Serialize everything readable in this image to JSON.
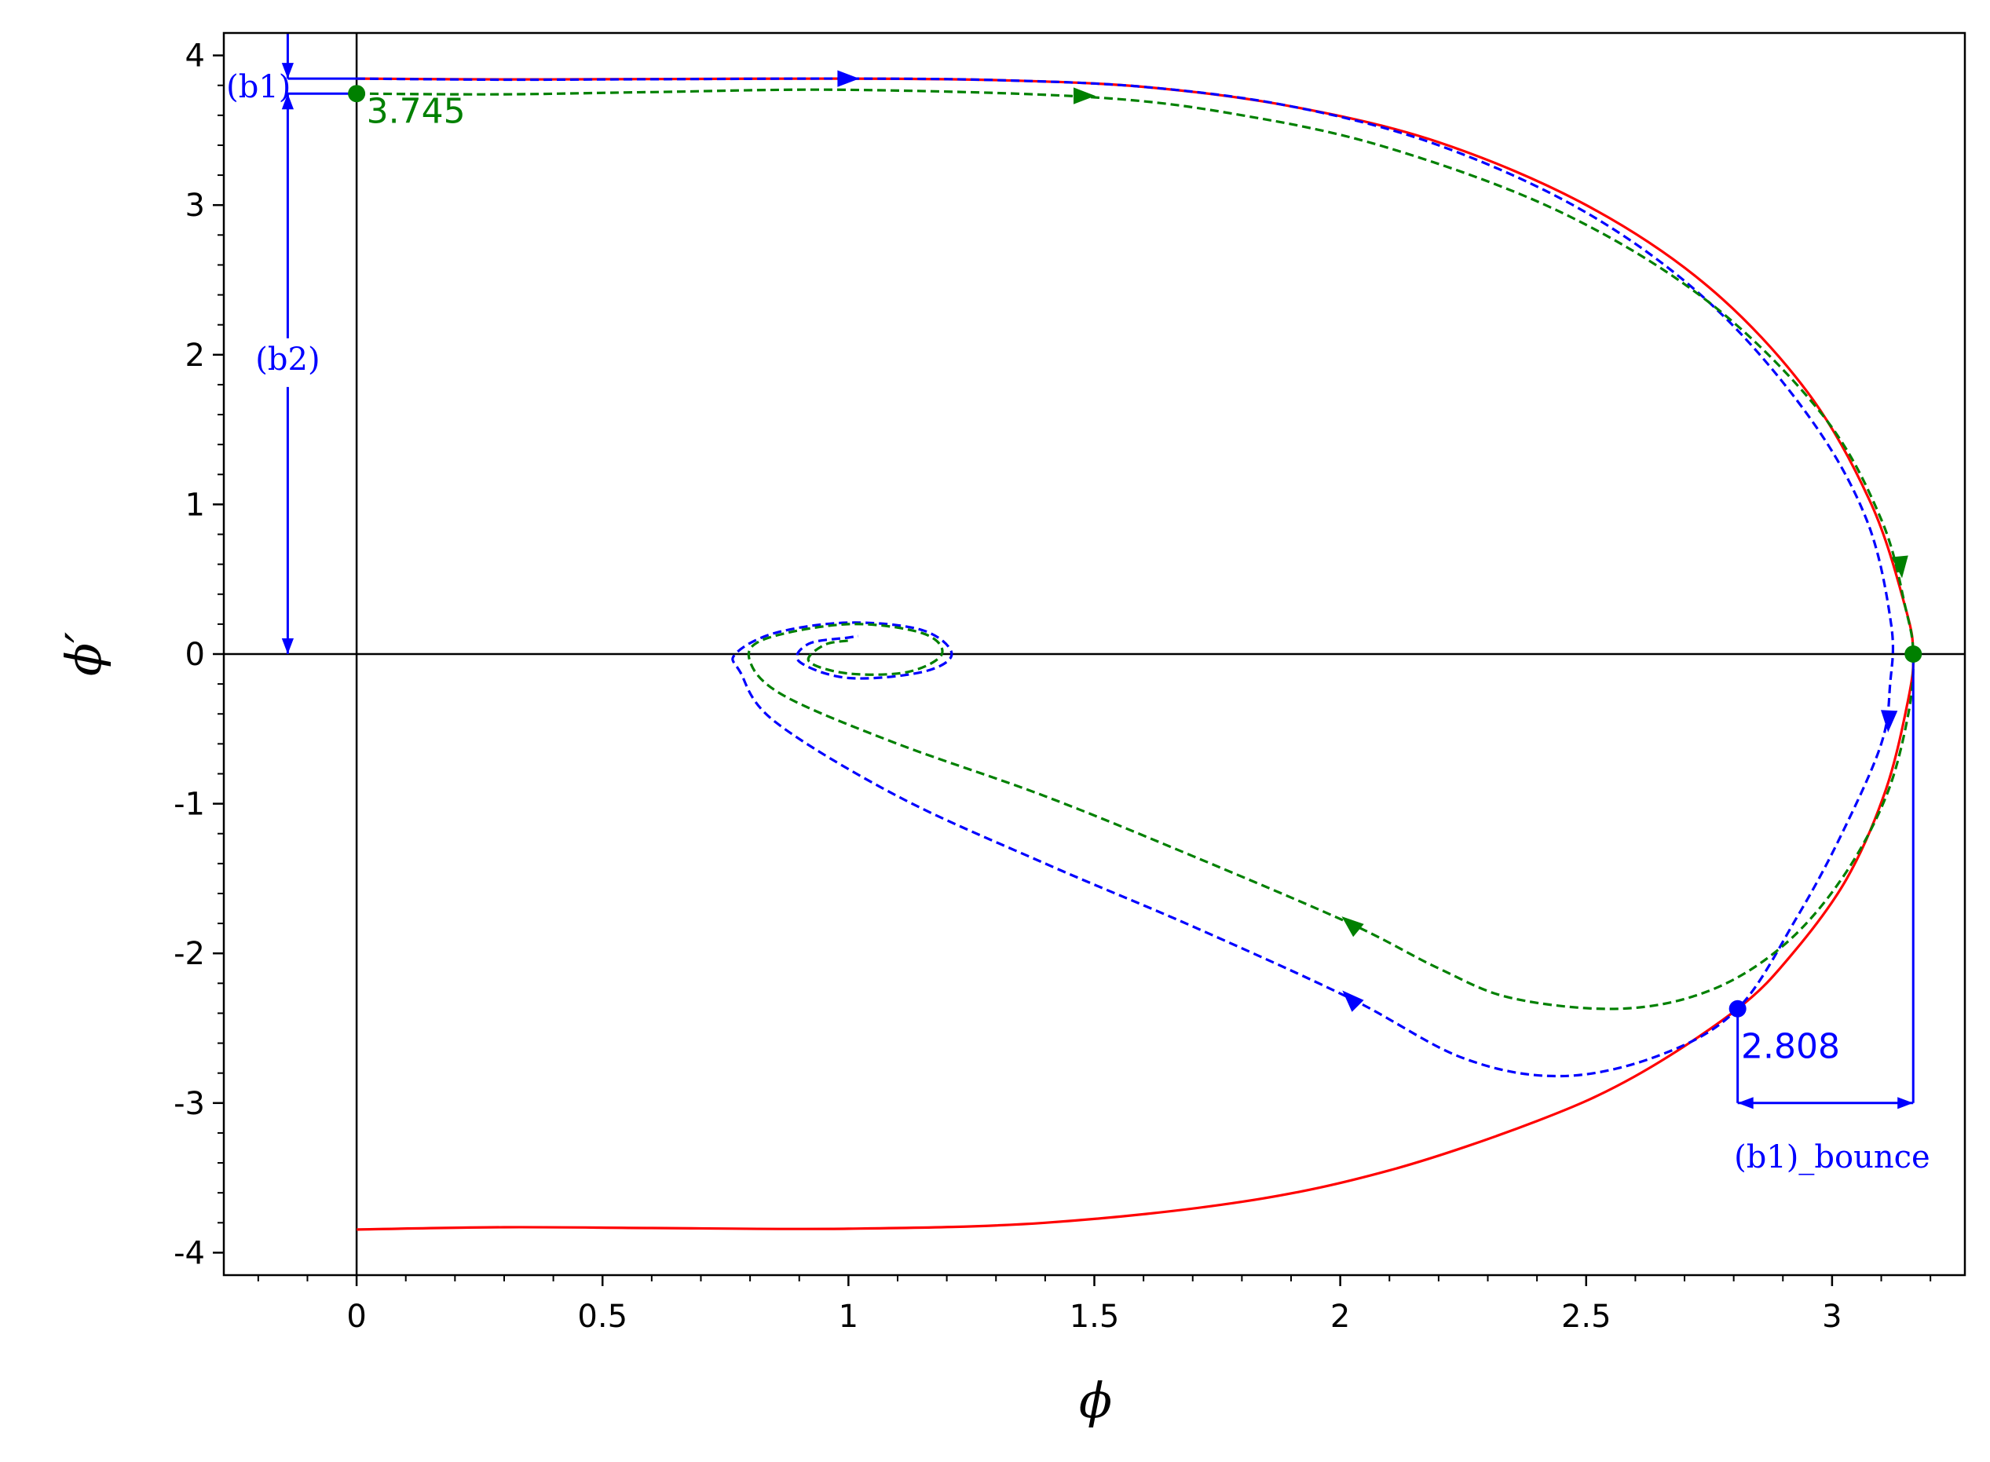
{
  "chart_data": {
    "type": "line",
    "xlabel": "ϕ",
    "ylabel": "ϕ′",
    "xlim": [
      -0.27,
      3.27
    ],
    "ylim": [
      -4.15,
      4.15
    ],
    "x_ticks": [
      0,
      0.5,
      1,
      1.5,
      2,
      2.5,
      3
    ],
    "x_tick_labels": [
      "0",
      "0.5",
      "1",
      "1.5",
      "2",
      "2.5",
      "3"
    ],
    "y_ticks": [
      -4,
      -3,
      -2,
      -1,
      0,
      1,
      2,
      3,
      4
    ],
    "y_tick_labels": [
      "-4",
      "-3",
      "-2",
      "-1",
      "0",
      "1",
      "2",
      "3",
      "4"
    ],
    "grid": false,
    "legend": "none",
    "series": [
      {
        "color": "#ff0000",
        "style": "solid",
        "points": [
          [
            0,
            3.845
          ],
          [
            0.3,
            3.84
          ],
          [
            0.6,
            3.842
          ],
          [
            1.0,
            3.845
          ],
          [
            1.3,
            3.835
          ],
          [
            1.6,
            3.79
          ],
          [
            1.9,
            3.66
          ],
          [
            2.2,
            3.42
          ],
          [
            2.5,
            3.0
          ],
          [
            2.75,
            2.45
          ],
          [
            2.95,
            1.75
          ],
          [
            3.08,
            1.0
          ],
          [
            3.15,
            0.3
          ],
          [
            3.165,
            0.0
          ],
          [
            3.155,
            -0.3
          ],
          [
            3.11,
            -0.9
          ],
          [
            3.03,
            -1.5
          ],
          [
            2.92,
            -2.0
          ],
          [
            2.808,
            -2.37
          ],
          [
            2.6,
            -2.82
          ],
          [
            2.4,
            -3.12
          ],
          [
            2.1,
            -3.45
          ],
          [
            1.8,
            -3.66
          ],
          [
            1.4,
            -3.8
          ],
          [
            1.0,
            -3.84
          ],
          [
            0.6,
            -3.835
          ],
          [
            0.3,
            -3.83
          ],
          [
            0,
            -3.845
          ]
        ]
      },
      {
        "color": "#0000ff",
        "style": "dashed",
        "points": [
          [
            0,
            3.845
          ],
          [
            0.3,
            3.838
          ],
          [
            0.6,
            3.841
          ],
          [
            1.0,
            3.845
          ],
          [
            1.3,
            3.835
          ],
          [
            1.6,
            3.79
          ],
          [
            1.9,
            3.66
          ],
          [
            2.2,
            3.4
          ],
          [
            2.5,
            2.95
          ],
          [
            2.75,
            2.35
          ],
          [
            2.95,
            1.6
          ],
          [
            3.07,
            0.9
          ],
          [
            3.12,
            0.2
          ],
          [
            3.118,
            -0.2
          ],
          [
            3.1,
            -0.6
          ],
          [
            3.02,
            -1.2
          ],
          [
            2.93,
            -1.75
          ],
          [
            2.808,
            -2.37
          ],
          [
            2.65,
            -2.68
          ],
          [
            2.45,
            -2.82
          ],
          [
            2.25,
            -2.7
          ],
          [
            2.02,
            -2.3
          ],
          [
            1.7,
            -1.82
          ],
          [
            1.4,
            -1.4
          ],
          [
            1.1,
            -0.95
          ],
          [
            0.85,
            -0.45
          ],
          [
            0.78,
            -0.12
          ],
          [
            0.77,
            0.0
          ],
          [
            0.85,
            0.14
          ],
          [
            1.0,
            0.21
          ],
          [
            1.15,
            0.16
          ],
          [
            1.21,
            0.0
          ],
          [
            1.15,
            -0.12
          ],
          [
            1.0,
            -0.16
          ],
          [
            0.9,
            -0.05
          ],
          [
            0.92,
            0.07
          ],
          [
            1.0,
            0.11
          ],
          [
            1.02,
            0.12
          ]
        ]
      },
      {
        "color": "#008000",
        "style": "dashed",
        "points": [
          [
            0,
            3.745
          ],
          [
            0.3,
            3.74
          ],
          [
            0.6,
            3.755
          ],
          [
            1.0,
            3.77
          ],
          [
            1.5,
            3.72
          ],
          [
            1.8,
            3.6
          ],
          [
            2.1,
            3.38
          ],
          [
            2.45,
            2.95
          ],
          [
            2.75,
            2.35
          ],
          [
            2.98,
            1.6
          ],
          [
            3.1,
            0.9
          ],
          [
            3.15,
            0.3
          ],
          [
            3.165,
            0.0
          ],
          [
            3.155,
            -0.4
          ],
          [
            3.11,
            -0.95
          ],
          [
            3.02,
            -1.5
          ],
          [
            2.9,
            -1.95
          ],
          [
            2.75,
            -2.25
          ],
          [
            2.57,
            -2.37
          ],
          [
            2.35,
            -2.3
          ],
          [
            2.2,
            -2.1
          ],
          [
            2.02,
            -1.8
          ],
          [
            1.7,
            -1.35
          ],
          [
            1.4,
            -0.95
          ],
          [
            1.1,
            -0.6
          ],
          [
            0.87,
            -0.28
          ],
          [
            0.8,
            -0.05
          ],
          [
            0.83,
            0.1
          ],
          [
            1.0,
            0.2
          ],
          [
            1.15,
            0.14
          ],
          [
            1.19,
            0.0
          ],
          [
            1.12,
            -0.12
          ],
          [
            1.0,
            -0.13
          ],
          [
            0.92,
            -0.05
          ],
          [
            0.95,
            0.06
          ],
          [
            1.0,
            0.09
          ]
        ]
      }
    ],
    "arrows": [
      {
        "color": "#0000ff",
        "x": 1.0,
        "y": 3.845,
        "dx": 1,
        "dy": 0
      },
      {
        "color": "#008000",
        "x": 1.48,
        "y": 3.73,
        "dx": 1,
        "dy": 0
      },
      {
        "color": "#008000",
        "x": 3.14,
        "y": 0.58,
        "dx": 0.1,
        "dy": -1
      },
      {
        "color": "#0000ff",
        "x": 3.115,
        "y": -0.45,
        "dx": -0.05,
        "dy": -1
      },
      {
        "color": "#008000",
        "x": 2.02,
        "y": -1.8,
        "dx": -0.72,
        "dy": 0.6
      },
      {
        "color": "#0000ff",
        "x": 2.02,
        "y": -2.3,
        "dx": -0.6,
        "dy": 0.6
      }
    ],
    "markers": [
      {
        "color": "#008000",
        "x": 0,
        "y": 3.745
      },
      {
        "color": "#008000",
        "x": 3.165,
        "y": 0
      },
      {
        "color": "#0000ff",
        "x": 2.808,
        "y": -2.37
      }
    ],
    "dimension_lines": [
      {
        "color": "#0000ff",
        "x1": 0,
        "y1": 3.845,
        "x2": -0.14,
        "y2": 3.845
      },
      {
        "color": "#0000ff",
        "x1": 0,
        "y1": 3.745,
        "x2": -0.14,
        "y2": 3.745
      },
      {
        "color": "#0000ff",
        "x1": -0.14,
        "y1": 4.15,
        "x2": -0.14,
        "y2": 3.845,
        "arrow_end": true
      },
      {
        "color": "#0000ff",
        "x1": -0.14,
        "y1": 3.745,
        "x2": -0.14,
        "y2": 0.0,
        "arrow_start": true,
        "arrow_end": true
      },
      {
        "color": "#0000ff",
        "x1": 2.808,
        "y1": -2.37,
        "x2": 2.808,
        "y2": -3.0
      },
      {
        "color": "#0000ff",
        "x1": 3.165,
        "y1": 0.0,
        "x2": 3.165,
        "y2": -3.0
      },
      {
        "color": "#0000ff",
        "x1": 2.808,
        "y1": -3.0,
        "x2": 3.165,
        "y2": -3.0,
        "arrow_start": true,
        "arrow_end": true
      }
    ],
    "annotations": [
      {
        "text": "3.745",
        "color": "#008000",
        "x": 0.02,
        "y": 3.55,
        "font": "sans",
        "anchor": "start"
      },
      {
        "text": "2.808",
        "color": "#0000ff",
        "x": 2.815,
        "y": -2.7,
        "font": "sans",
        "anchor": "start"
      },
      {
        "text": "(b1)",
        "color": "#0000ff",
        "x": -0.265,
        "y": 3.72,
        "font": "serif",
        "anchor": "start"
      },
      {
        "text": "(b2)",
        "color": "#0000ff",
        "x": -0.14,
        "y": 1.9,
        "font": "serif",
        "anchor": "middle"
      },
      {
        "text": "(b1)_bounce",
        "color": "#0000ff",
        "x": 3.0,
        "y": -3.43,
        "font": "serif",
        "anchor": "middle"
      }
    ]
  }
}
